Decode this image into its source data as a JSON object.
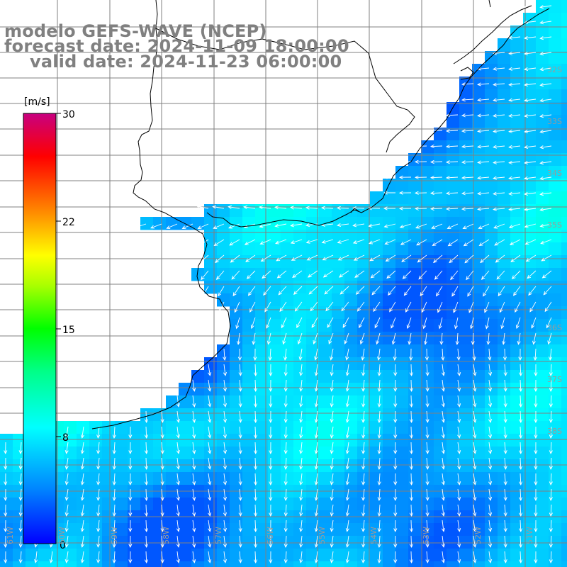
{
  "title": {
    "model": "modelo GEFS-WAVE (NCEP)",
    "forecast": "forecast date: 2024-11-09 18:00:00",
    "valid": "valid date: 2024-11-23 06:00:00"
  },
  "colorbar": {
    "unit": "[m/s]",
    "ticks": [
      "30",
      "22",
      "15",
      "8",
      "0"
    ],
    "tick_values": [
      30,
      22,
      15,
      8,
      0
    ],
    "range": [
      0,
      30
    ],
    "colors": [
      "#0000ff",
      "#00aaff",
      "#00ffff",
      "#00ff00",
      "#ffff00",
      "#ff8000",
      "#ff0000",
      "#c80080"
    ]
  },
  "grid": {
    "lat_labels": [
      "32S",
      "33S",
      "34S",
      "35S",
      "36S",
      "37S",
      "38S"
    ],
    "lon_labels": [
      "61W",
      "60W",
      "59W",
      "58W",
      "57W",
      "56W",
      "55W",
      "54W",
      "53W",
      "52W",
      "51W"
    ]
  },
  "field": {
    "variable": "wind speed and direction",
    "typical_speed_ms": "4-9",
    "prevailing_direction": "northerly to north-easterly",
    "colors": {
      "land": "#ffffff",
      "coast": "#000000",
      "grid": "#808080",
      "arrow": "#ffffff"
    }
  }
}
